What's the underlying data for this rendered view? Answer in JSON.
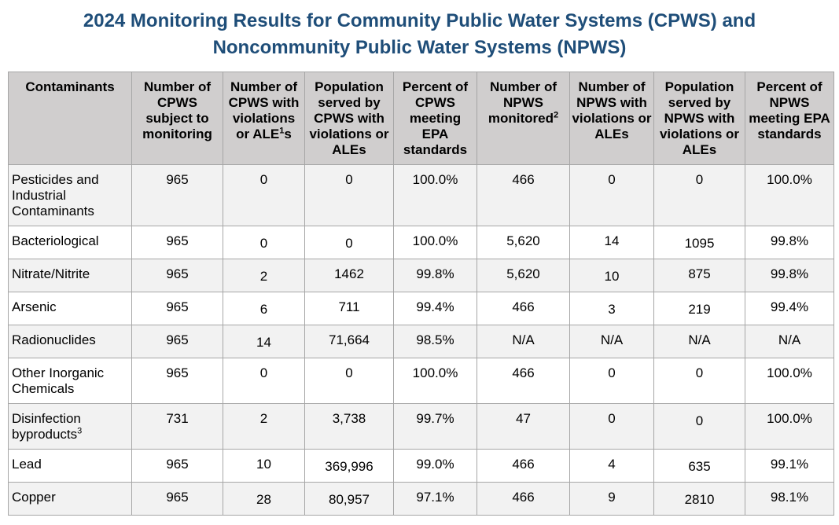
{
  "title_line1": "2024 Monitoring Results for Community Public Water Systems (CPWS) and",
  "title_line2": "Noncommunity Public Water Systems (NPWS)",
  "headers": {
    "h0": "Contaminants",
    "h1": "Number of CPWS subject to monitoring",
    "h2_pre": "Number of CPWS with violations or ALE",
    "h2_sup": "1",
    "h2_post": "s",
    "h3": "Population served by CPWS with violations or ALEs",
    "h4": "Percent of CPWS meeting EPA standards",
    "h5_pre": "Number of NPWS monitored",
    "h5_sup": "2",
    "h6": "Number of NPWS with violations or ALEs",
    "h7": "Population served by NPWS with violations or ALEs",
    "h8": "Percent of NPWS meeting EPA standards"
  },
  "rows": [
    {
      "name": "Pesticides and Industrial Contaminants",
      "sup": "",
      "c1": "965",
      "c2": "0",
      "c3": "0",
      "c4": "100.0%",
      "c5": "466",
      "c6": "0",
      "c7": "0",
      "c8": "100.0%"
    },
    {
      "name": "Bacteriological",
      "sup": "",
      "c1": "965",
      "c2": "0",
      "c3": "0",
      "c4": "100.0%",
      "c5": "5,620",
      "c6": "14",
      "c7": "1095",
      "c8": "99.8%"
    },
    {
      "name": "Nitrate/Nitrite",
      "sup": "",
      "c1": "965",
      "c2": "2",
      "c3": "1462",
      "c4": "99.8%",
      "c5": "5,620",
      "c6": "10",
      "c7": "875",
      "c8": "99.8%"
    },
    {
      "name": "Arsenic",
      "sup": "",
      "c1": "965",
      "c2": "6",
      "c3": "711",
      "c4": "99.4%",
      "c5": "466",
      "c6": "3",
      "c7": "219",
      "c8": "99.4%"
    },
    {
      "name": "Radionuclides",
      "sup": "",
      "c1": "965",
      "c2": "14",
      "c3": "71,664",
      "c4": "98.5%",
      "c5": "N/A",
      "c6": "N/A",
      "c7": "N/A",
      "c8": "N/A"
    },
    {
      "name": "Other Inorganic Chemicals",
      "sup": "",
      "c1": "965",
      "c2": "0",
      "c3": "0",
      "c4": "100.0%",
      "c5": "466",
      "c6": "0",
      "c7": "0",
      "c8": "100.0%"
    },
    {
      "name": "Disinfection byproducts",
      "sup": "3",
      "c1": "731",
      "c2": "2",
      "c3": "3,738",
      "c4": "99.7%",
      "c5": "47",
      "c6": "0",
      "c7": "0",
      "c8": "100.0%"
    },
    {
      "name": "Lead",
      "sup": "",
      "c1": "965",
      "c2": "10",
      "c3": "369,996",
      "c4": "99.0%",
      "c5": "466",
      "c6": "4",
      "c7": "635",
      "c8": "99.1%"
    },
    {
      "name": "Copper",
      "sup": "",
      "c1": "965",
      "c2": "28",
      "c3": "80,957",
      "c4": "97.1%",
      "c5": "466",
      "c6": "9",
      "c7": "2810",
      "c8": "98.1%"
    }
  ],
  "colors": {
    "title": "#1f4e79",
    "header_bg": "#d0cece",
    "stripe": "#f2f2f2",
    "border": "#a6a6a6"
  }
}
